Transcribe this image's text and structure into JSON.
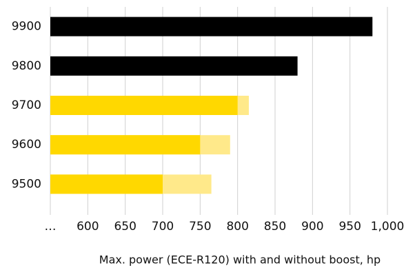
{
  "chart_data": {
    "type": "bar",
    "orientation": "horizontal",
    "xlabel": "Max. power (ECE-R120) with and without boost, hp",
    "categories": [
      "9900",
      "9800",
      "9700",
      "9600",
      "9500"
    ],
    "series": [
      {
        "colors": [
          "#e8e8e8",
          "#e8e8e8",
          "#ffe98a",
          "#ffe98a",
          "#ffe98a"
        ],
        "values": [
          null,
          null,
          815,
          790,
          765
        ]
      },
      {
        "colors": [
          "#000000",
          "#000000",
          "#ffd800",
          "#ffd800",
          "#ffd800"
        ],
        "values": [
          980,
          880,
          800,
          750,
          700
        ]
      }
    ],
    "xlim": [
      550,
      1000
    ],
    "xticks": [
      {
        "value": 550,
        "label": "…"
      },
      600,
      650,
      700,
      750,
      800,
      850,
      900,
      950,
      {
        "value": 1000,
        "label": "1,000"
      }
    ],
    "grid": true
  }
}
